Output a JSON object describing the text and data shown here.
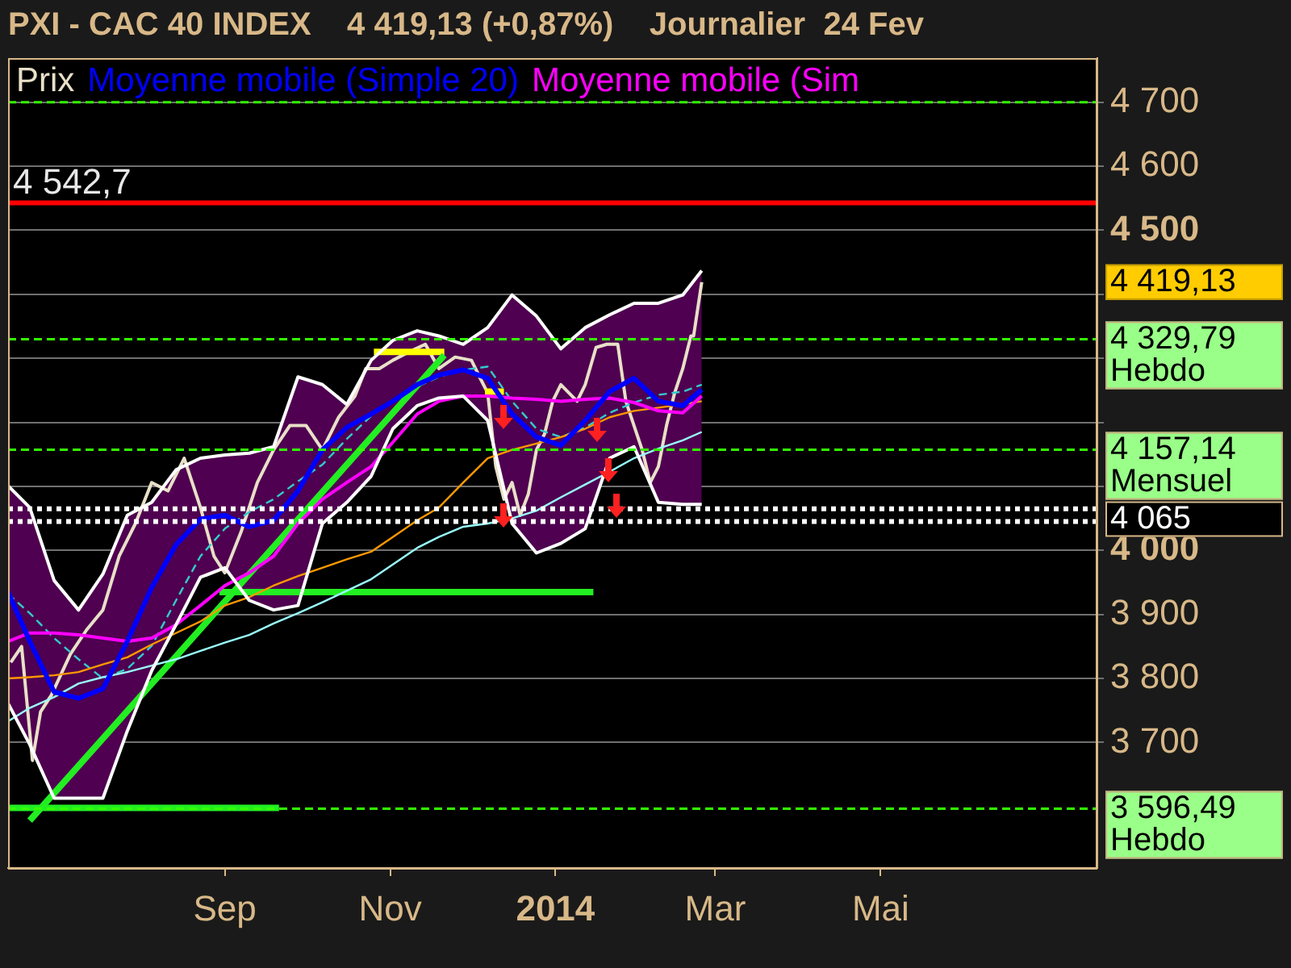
{
  "chart_data": {
    "type": "line",
    "title": "PXI - CAC 40 INDEX    4 419,13 (+0,87%)    Journalier  24 Fev",
    "x": [
      "2013-06-13",
      "2013-06-21",
      "2013-06-30",
      "2013-07-09",
      "2013-07-18",
      "2013-07-27",
      "2013-08-05",
      "2013-08-14",
      "2013-08-23",
      "2013-09-01",
      "2013-09-10",
      "2013-09-19",
      "2013-09-28",
      "2013-10-07",
      "2013-10-16",
      "2013-10-25",
      "2013-11-02",
      "2013-11-11",
      "2013-11-19",
      "2013-11-28",
      "2013-12-07",
      "2013-12-16",
      "2013-12-25",
      "2014-01-03",
      "2014-01-12",
      "2014-01-21",
      "2014-01-30",
      "2014-02-08",
      "2014-02-17",
      "2014-02-24"
    ],
    "series": [
      {
        "name": "Prix",
        "color": "#e8e0c8",
        "x": [
          "2013-06-14",
          "2013-06-18",
          "2013-06-22",
          "2013-06-25",
          "2013-06-29",
          "2013-07-06",
          "2013-07-12",
          "2013-07-18",
          "2013-07-24",
          "2013-07-30",
          "2013-08-05",
          "2013-08-11",
          "2013-08-17",
          "2013-08-23",
          "2013-08-28",
          "2013-09-01",
          "2013-09-07",
          "2013-09-13",
          "2013-09-19",
          "2013-09-25",
          "2013-10-01",
          "2013-10-07",
          "2013-10-13",
          "2013-10-19",
          "2013-10-23",
          "2013-10-28",
          "2013-11-02",
          "2013-11-08",
          "2013-11-14",
          "2013-11-19",
          "2013-11-25",
          "2013-12-01",
          "2013-12-04",
          "2013-12-07",
          "2013-12-10",
          "2013-12-13",
          "2013-12-16",
          "2013-12-19",
          "2013-12-22",
          "2013-12-25",
          "2013-12-28",
          "2013-12-31",
          "2014-01-03",
          "2014-01-06",
          "2014-01-09",
          "2014-01-12",
          "2014-01-16",
          "2014-01-20",
          "2014-01-24",
          "2014-01-27",
          "2014-01-30",
          "2014-02-02",
          "2014-02-05",
          "2014-02-08",
          "2014-02-11",
          "2014-02-14",
          "2014-02-17",
          "2014-02-20",
          "2014-02-21",
          "2014-02-24"
        ],
        "values": [
          3825,
          3850,
          3672,
          3748,
          3774,
          3838,
          3876,
          3907,
          3991,
          4042,
          4106,
          4093,
          4144,
          4067,
          3991,
          3965,
          4029,
          4106,
          4157,
          4195,
          4195,
          4157,
          4208,
          4241,
          4284,
          4284,
          4297,
          4310,
          4322,
          4284,
          4302,
          4297,
          4271,
          4246,
          4131,
          4080,
          4106,
          4055,
          4088,
          4157,
          4182,
          4233,
          4259,
          4246,
          4233,
          4259,
          4317,
          4322,
          4322,
          4233,
          4195,
          4157,
          4106,
          4131,
          4195,
          4246,
          4284,
          4335,
          4335,
          4419
        ]
      },
      {
        "color": "#ffffff",
        "values": [
          4101,
          4067,
          3953,
          3907,
          3963,
          4055,
          4075,
          4126,
          4144,
          4149,
          4152,
          4162,
          4271,
          4259,
          4228,
          4297,
          4328,
          4343,
          4335,
          4322,
          4348,
          4399,
          4366,
          4315,
          4348,
          4368,
          4386,
          4386,
          4399,
          4437
        ]
      },
      {
        "color": "#ffffff",
        "values": [
          3761,
          3697,
          3613,
          3613,
          3613,
          3718,
          3812,
          3884,
          3958,
          3973,
          3922,
          3907,
          3914,
          4042,
          4075,
          4116,
          4190,
          4226,
          4238,
          4241,
          4203,
          4042,
          3996,
          4011,
          4034,
          4144,
          4162,
          4075,
          4072,
          4072
        ]
      },
      {
        "name": "Moyenne mobile (Simple 20)",
        "color": "#0000ff",
        "values": [
          3935,
          3858,
          3779,
          3769,
          3784,
          3858,
          3942,
          4009,
          4049,
          4055,
          4037,
          4047,
          4093,
          4157,
          4192,
          4213,
          4233,
          4259,
          4274,
          4282,
          4269,
          4213,
          4177,
          4164,
          4203,
          4248,
          4269,
          4233,
          4226,
          4251
        ],
        "upper": [
          4101,
          4067,
          3953,
          3907,
          3963,
          4055,
          4075,
          4126,
          4144,
          4149,
          4152,
          4162,
          4271,
          4259,
          4228,
          4297,
          4328,
          4343,
          4335,
          4322,
          4348,
          4399,
          4366,
          4315,
          4348,
          4368,
          4386,
          4386,
          4399,
          4437
        ],
        "lower": [
          3761,
          3697,
          3613,
          3613,
          3613,
          3718,
          3812,
          3884,
          3958,
          3973,
          3922,
          3907,
          3914,
          4042,
          4075,
          4116,
          4190,
          4226,
          4238,
          4241,
          4203,
          4042,
          3996,
          4011,
          4034,
          4144,
          4162,
          4075,
          4072,
          4072
        ]
      },
      {
        "name": "Moyenne mobile (Sim",
        "color": "#ff00ff",
        "values": [
          3858,
          3871,
          3871,
          3868,
          3863,
          3858,
          3863,
          3884,
          3914,
          3945,
          3965,
          3991,
          4042,
          4080,
          4106,
          4131,
          4169,
          4213,
          4233,
          4241,
          4241,
          4238,
          4236,
          4233,
          4236,
          4238,
          4231,
          4218,
          4215,
          4241
        ]
      },
      {
        "color": "#ff9900",
        "values": [
          3800,
          3802,
          3805,
          3810,
          3822,
          3833,
          3853,
          3871,
          3889,
          3914,
          3927,
          3945,
          3960,
          3973,
          3986,
          3998,
          4021,
          4047,
          4067,
          4106,
          4144,
          4157,
          4167,
          4177,
          4190,
          4208,
          4218,
          4223,
          4228,
          4233
        ]
      },
      {
        "color": "#99ffff",
        "values": [
          3733,
          3754,
          3771,
          3792,
          3802,
          3810,
          3820,
          3830,
          3843,
          3856,
          3868,
          3886,
          3902,
          3919,
          3937,
          3955,
          3978,
          4004,
          4021,
          4037,
          4042,
          4050,
          4062,
          4083,
          4103,
          4123,
          4144,
          4159,
          4172,
          4185
        ]
      },
      {
        "color": "#33cccc",
        "line_style": "dashed",
        "values": [
          3932,
          3902,
          3863,
          3830,
          3800,
          3815,
          3851,
          3922,
          3991,
          4034,
          4060,
          4080,
          4108,
          4134,
          4174,
          4210,
          4233,
          4256,
          4271,
          4282,
          4287,
          4233,
          4190,
          4177,
          4192,
          4215,
          4231,
          4243,
          4248,
          4259
        ]
      },
      {
        "color": "#22ee22",
        "x": [
          "2013-06-21",
          "2013-11-21"
        ],
        "values": [
          3578,
          4305
        ]
      },
      {
        "color": "#22ee22",
        "x": [
          "2013-08-30",
          "2014-01-15"
        ],
        "values": [
          3935,
          3935
        ]
      },
      {
        "color": "#22ee22",
        "x": [
          "2013-06-13",
          "2013-09-21"
        ],
        "values": [
          3598,
          3598
        ]
      },
      {
        "color": "#ffff00",
        "x": [
          "2013-10-26",
          "2013-11-21"
        ],
        "values": [
          4310,
          4310
        ]
      },
      {
        "color": "#ffff00",
        "x": [
          "2013-12-06",
          "2013-12-13"
        ],
        "values": [
          4248,
          4248
        ]
      }
    ],
    "xlim": [
      "2013-06-13",
      "2014-07-20"
    ],
    "xticks": [
      {
        "value": "2013-09-01",
        "label": "Sep"
      },
      {
        "value": "2013-11-01",
        "label": "Nov"
      },
      {
        "value": "2014-01-01",
        "label": "2014"
      },
      {
        "value": "2014-03-01",
        "label": "Mar"
      },
      {
        "value": "2014-05-01",
        "label": "Mai"
      }
    ],
    "ylim": [
      3504,
      4769
    ],
    "yticks": [
      {
        "value": 3700,
        "label": "3 700"
      },
      {
        "value": 3800,
        "label": "3 800"
      },
      {
        "value": 3900,
        "label": "3 900"
      },
      {
        "value": 4000,
        "label": "4 000"
      },
      {
        "value": 4100,
        "label": null
      },
      {
        "value": 4200,
        "label": null
      },
      {
        "value": 4300,
        "label": null
      },
      {
        "value": 4400,
        "label": null
      },
      {
        "value": 4500,
        "label": "4 500"
      },
      {
        "value": 4600,
        "label": "4 600"
      },
      {
        "value": 4700,
        "label": "4 700"
      }
    ],
    "grid": "y",
    "legend": "top",
    "ref_lines": [
      {
        "axis": "y",
        "value": 4700,
        "color": "#33ff00",
        "line_style": "dashed"
      },
      {
        "axis": "y",
        "value": 4542.7,
        "label": "4 542,7",
        "color": "#ff0000",
        "line_style": "solid"
      },
      {
        "axis": "y",
        "value": 4329.79,
        "label": "4 329,79\nHebdo",
        "color": "#33ff00",
        "line_style": "dashed"
      },
      {
        "axis": "y",
        "value": 4157.14,
        "label": "4 157,14\nMensuel",
        "color": "#33ff00",
        "line_style": "dashed"
      },
      {
        "axis": "y",
        "value": 4065,
        "label": "4 065",
        "color": "#ffffff",
        "line_style": "dotted"
      },
      {
        "axis": "y",
        "value": 4045,
        "color": "#ffffff",
        "line_style": "dotted"
      },
      {
        "axis": "y",
        "value": 3596.49,
        "label": "3 596,49\nHebdo",
        "color": "#33ff00",
        "line_style": "dashed"
      }
    ],
    "annotations": [
      "4 419,13"
    ]
  }
}
